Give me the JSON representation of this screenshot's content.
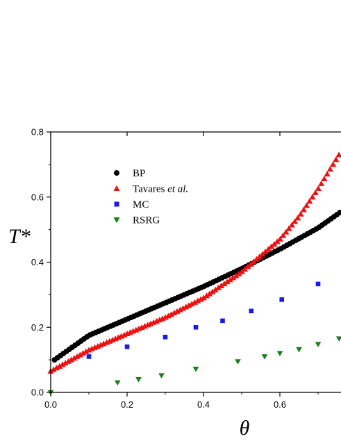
{
  "chart_data": {
    "type": "scatter",
    "xlabel": "θ",
    "ylabel": "T*",
    "xlim": [
      0.0,
      0.76
    ],
    "ylim": [
      0.0,
      0.8
    ],
    "x_ticks": [
      0.0,
      0.2,
      0.4,
      0.6
    ],
    "x_tick_labels": [
      "0.0",
      "0.2",
      "0.4",
      "0.6"
    ],
    "y_ticks": [
      0.0,
      0.2,
      0.4,
      0.6,
      0.8
    ],
    "y_tick_labels": [
      "0.0",
      "0.2",
      "0.4",
      "0.6",
      "0.8"
    ],
    "legend_position": "upper-left",
    "series": [
      {
        "name": "BP",
        "name_parts": [
          {
            "text": "BP",
            "italic": false
          }
        ],
        "marker": "circle",
        "color": "#000000",
        "curve": {
          "x": [
            0.01,
            0.1,
            0.2,
            0.3,
            0.4,
            0.5,
            0.6,
            0.7,
            0.76
          ],
          "y": [
            0.1,
            0.175,
            0.225,
            0.275,
            0.325,
            0.38,
            0.44,
            0.505,
            0.555
          ],
          "step": 0.0077
        }
      },
      {
        "name": "Tavares et al.",
        "name_parts": [
          {
            "text": "Tavares ",
            "italic": false
          },
          {
            "text": "et al.",
            "italic": true
          }
        ],
        "marker": "triangle-up",
        "color": "#ee1111",
        "curve": {
          "x": [
            0.0,
            0.1,
            0.2,
            0.3,
            0.4,
            0.5,
            0.55,
            0.6,
            0.65,
            0.7,
            0.76
          ],
          "y": [
            0.065,
            0.13,
            0.18,
            0.23,
            0.29,
            0.37,
            0.42,
            0.47,
            0.54,
            0.625,
            0.74
          ],
          "step": 0.0077
        }
      },
      {
        "name": "MC",
        "name_parts": [
          {
            "text": "MC",
            "italic": false
          }
        ],
        "marker": "square",
        "color": "#1a1aee",
        "x": [
          0.1,
          0.2,
          0.3,
          0.38,
          0.45,
          0.525,
          0.605,
          0.7
        ],
        "y": [
          0.11,
          0.14,
          0.17,
          0.2,
          0.22,
          0.25,
          0.285,
          0.333
        ]
      },
      {
        "name": "RSRG",
        "name_parts": [
          {
            "text": "RSRG",
            "italic": false
          }
        ],
        "marker": "triangle-down",
        "color": "#1a801a",
        "x": [
          0.0,
          0.175,
          0.23,
          0.29,
          0.38,
          0.49,
          0.56,
          0.6,
          0.65,
          0.7,
          0.755
        ],
        "y": [
          0.0,
          0.03,
          0.04,
          0.052,
          0.072,
          0.095,
          0.11,
          0.12,
          0.132,
          0.148,
          0.165
        ]
      }
    ]
  }
}
